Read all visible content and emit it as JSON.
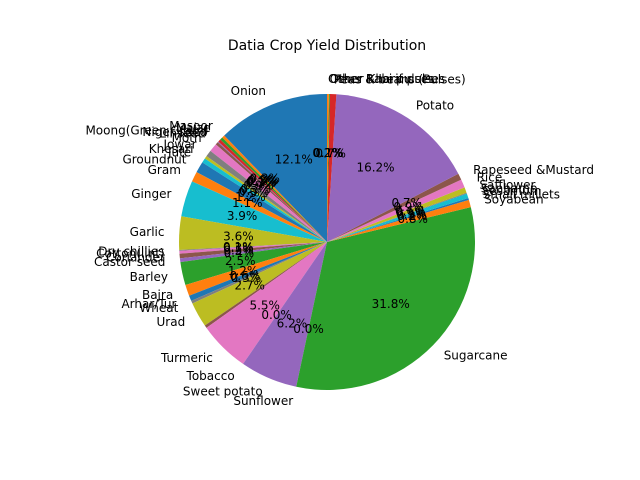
{
  "chart_data": {
    "type": "pie",
    "title": "Datia Crop Yield Distribution",
    "slices": [
      {
        "label": "Onion",
        "value": 12.1,
        "pct_label": "12.1%",
        "color": "#1f77b4"
      },
      {
        "label": "Masoor",
        "value": 0.3,
        "pct_label": "0.3%",
        "color": "#ff7f0e"
      },
      {
        "label": "Maize",
        "value": 0.3,
        "pct_label": "0.3%",
        "color": "#2ca02c"
      },
      {
        "label": "Moong(Green Gram)",
        "value": 0.3,
        "pct_label": "0.3%",
        "color": "#d62728"
      },
      {
        "label": "Niger seed",
        "value": 0.1,
        "pct_label": "0.1%",
        "color": "#9467bd"
      },
      {
        "label": "Linseed",
        "value": 0.3,
        "pct_label": "0.3%",
        "color": "#8c564b"
      },
      {
        "label": "Moth",
        "value": 0.9,
        "pct_label": "0.9%",
        "color": "#e377c2"
      },
      {
        "label": "Jowar",
        "value": 0.7,
        "pct_label": "0.7%",
        "color": "#7f7f7f"
      },
      {
        "label": "Khesari",
        "value": 0.3,
        "pct_label": "0.3%",
        "color": "#bcbd22"
      },
      {
        "label": "Jute",
        "value": 0.5,
        "pct_label": "0.5%",
        "color": "#17becf"
      },
      {
        "label": "Groundnut",
        "value": 1.2,
        "pct_label": "1.2%",
        "color": "#1f77b4"
      },
      {
        "label": "Gram",
        "value": 1.1,
        "pct_label": "1.1%",
        "color": "#ff7f0e"
      },
      {
        "label": "Ginger",
        "value": 3.9,
        "pct_label": "3.9%",
        "color": "#17becf"
      },
      {
        "label": "Garlic",
        "value": 3.6,
        "pct_label": "3.6%",
        "color": "#bcbd22"
      },
      {
        "label": "Dry chillies",
        "value": 0.1,
        "pct_label": "0.1%",
        "color": "#7f7f7f"
      },
      {
        "label": "Cotton(lint)",
        "value": 0.3,
        "pct_label": "0.3%",
        "color": "#e377c2"
      },
      {
        "label": "Coriander",
        "value": 0.5,
        "pct_label": "0.5%",
        "color": "#8c564b"
      },
      {
        "label": "Castor seed",
        "value": 0.4,
        "pct_label": "0.4%",
        "color": "#9467bd"
      },
      {
        "label": "Barley",
        "value": 2.5,
        "pct_label": "2.5%",
        "color": "#2ca02c"
      },
      {
        "label": "Bajra",
        "value": 1.2,
        "pct_label": "1.2%",
        "color": "#ff7f0e"
      },
      {
        "label": "Arhar/Tur",
        "value": 0.6,
        "pct_label": "0.6%",
        "color": "#1f77b4"
      },
      {
        "label": "Wheat",
        "value": 0.3,
        "pct_label": "0.3%",
        "color": "#7f7f7f"
      },
      {
        "label": "Urad",
        "value": 2.7,
        "pct_label": "2.7%",
        "color": "#bcbd22"
      },
      {
        "label": "",
        "value": 0.3,
        "pct_label": "",
        "color": "#8c564b"
      },
      {
        "label": "Turmeric",
        "value": 5.5,
        "pct_label": "5.5%",
        "color": "#e377c2"
      },
      {
        "label": "Tobacco",
        "value": 0.0,
        "pct_label": "0.0%",
        "color": "#17becf"
      },
      {
        "label": "Sweet potato",
        "value": 6.2,
        "pct_label": "6.2%",
        "color": "#9467bd"
      },
      {
        "label": "Sunflower",
        "value": 0.0,
        "pct_label": "0.0%",
        "color": "#d62728"
      },
      {
        "label": "Sugarcane",
        "value": 31.8,
        "pct_label": "31.8%",
        "color": "#2ca02c"
      },
      {
        "label": "Soyabean",
        "value": 0.8,
        "pct_label": "0.8%",
        "color": "#ff7f0e"
      },
      {
        "label": "Small millets",
        "value": 0.2,
        "pct_label": "0.2%",
        "color": "#1f77b4"
      },
      {
        "label": "Sesamum",
        "value": 0.5,
        "pct_label": "0.5%",
        "color": "#17becf"
      },
      {
        "label": "Sanhamp",
        "value": 0.1,
        "pct_label": "0.1%",
        "color": "#7f7f7f"
      },
      {
        "label": "Safflower",
        "value": 0.6,
        "pct_label": "0.6%",
        "color": "#bcbd22"
      },
      {
        "label": "Rice",
        "value": 0.9,
        "pct_label": "0.9%",
        "color": "#e377c2"
      },
      {
        "label": "Rapeseed &Mustard",
        "value": 0.7,
        "pct_label": "0.7%",
        "color": "#8c564b"
      },
      {
        "label": "Potato",
        "value": 16.2,
        "pct_label": "16.2%",
        "color": "#9467bd"
      },
      {
        "label": "Peas & beans (Pulses)",
        "value": 0.7,
        "pct_label": "0.7%",
        "color": "#d62728"
      },
      {
        "label": "Other Kharif pulses",
        "value": 0.1,
        "pct_label": "0.1%",
        "color": "#2ca02c"
      },
      {
        "label": "Other Rabi pulses",
        "value": 0.2,
        "pct_label": "0.2%",
        "color": "#ff7f0e"
      }
    ]
  }
}
